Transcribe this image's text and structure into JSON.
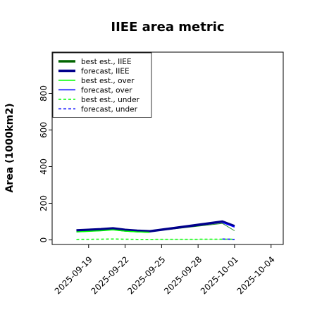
{
  "chart_data": {
    "type": "line",
    "title": "IIEE area metric",
    "xlabel": "",
    "ylabel": "Area (1000km2)",
    "ylim": [
      -25,
      1025
    ],
    "yticks": [
      0,
      200,
      400,
      600,
      800
    ],
    "x_tick_labels": [
      "2025-09-19",
      "2025-09-22",
      "2025-09-25",
      "2025-09-28",
      "2025-10-01",
      "2025-10-04"
    ],
    "highlight_tick": "2025-09-25",
    "highlight_color": "#228b22",
    "xlim": [
      "2025-09-16",
      "2025-10-05"
    ],
    "grid": false,
    "legend_position": "top-left",
    "series": [
      {
        "name": "best est., IIEE",
        "style": "solid",
        "color": "#006400",
        "width": 3.5,
        "x": [
          "2025-09-18",
          "2025-09-20",
          "2025-09-21",
          "2025-09-22",
          "2025-09-23",
          "2025-09-24"
        ],
        "y": [
          48,
          55,
          60,
          52,
          48,
          45
        ]
      },
      {
        "name": "forecast, IIEE",
        "style": "solid",
        "color": "#00008b",
        "width": 3.5,
        "x": [
          "2025-09-18",
          "2025-09-20",
          "2025-09-21",
          "2025-09-22",
          "2025-09-23",
          "2025-09-24",
          "2025-09-30",
          "2025-10-01"
        ],
        "y": [
          52,
          58,
          63,
          55,
          50,
          47,
          100,
          75
        ]
      },
      {
        "name": "best est., over",
        "style": "solid",
        "color": "#00ff00",
        "width": 1.5,
        "x": [
          "2025-09-18",
          "2025-09-20",
          "2025-09-21",
          "2025-09-22",
          "2025-09-23",
          "2025-09-24"
        ],
        "y": [
          44,
          50,
          55,
          48,
          44,
          42
        ]
      },
      {
        "name": "forecast, over",
        "style": "solid",
        "color": "#0000ff",
        "width": 1.5,
        "x": [
          "2025-09-30",
          "2025-10-01"
        ],
        "y": [
          95,
          70
        ]
      },
      {
        "name": "best est., under",
        "style": "dashed",
        "color": "#00ff00",
        "width": 1.5,
        "x": [
          "2025-09-18",
          "2025-09-20",
          "2025-09-21",
          "2025-09-22",
          "2025-09-23",
          "2025-09-24",
          "2025-09-30",
          "2025-10-01"
        ],
        "y": [
          3,
          4,
          5,
          4,
          3,
          3,
          4,
          4
        ]
      },
      {
        "name": "forecast, under",
        "style": "dashed",
        "color": "#0000ff",
        "width": 1.5,
        "x": [
          "2025-09-30",
          "2025-10-01"
        ],
        "y": [
          5,
          3
        ]
      }
    ],
    "connectors": [
      {
        "color": "#228b22",
        "width": 1,
        "x": [
          "2025-09-24",
          "2025-09-30",
          "2025-10-01"
        ],
        "y": [
          45,
          90,
          50
        ]
      },
      {
        "color": "#bfe8bf",
        "width": 1,
        "x": [
          "2025-09-24",
          "2025-09-30",
          "2025-10-01"
        ],
        "y": [
          3,
          4,
          4
        ]
      }
    ]
  }
}
